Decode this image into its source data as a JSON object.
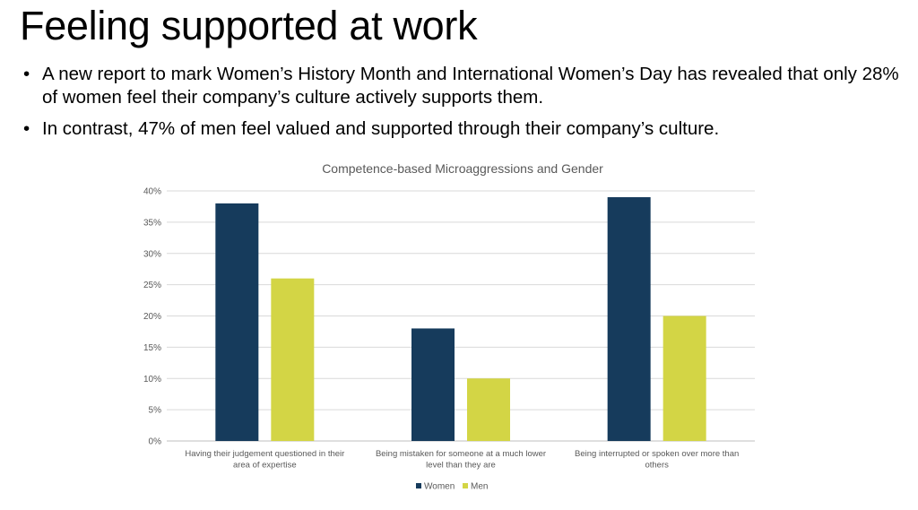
{
  "slide": {
    "title": "Feeling supported at work",
    "bullets": [
      "A new report to mark Women’s History Month and International Women’s Day has revealed that only 28% of women feel their company’s culture actively supports them.",
      "In contrast, 47% of men feel valued and supported through their company’s culture."
    ]
  },
  "chart_data": {
    "type": "bar",
    "title": "Competence-based Microaggressions and Gender",
    "categories": [
      "Having their judgement questioned in their area of expertise",
      "Being mistaken for someone at a much lower level than they are",
      "Being interrupted or spoken over more than others"
    ],
    "series": [
      {
        "name": "Women",
        "values": [
          38,
          18,
          39
        ],
        "color": "#163B5C"
      },
      {
        "name": "Men",
        "values": [
          26,
          10,
          20
        ],
        "color": "#D3D545"
      }
    ],
    "ylim": [
      0,
      40
    ],
    "yticks": [
      0,
      5,
      10,
      15,
      20,
      25,
      30,
      35,
      40
    ],
    "ytick_format": "%",
    "grid": true,
    "legend_position": "bottom"
  }
}
